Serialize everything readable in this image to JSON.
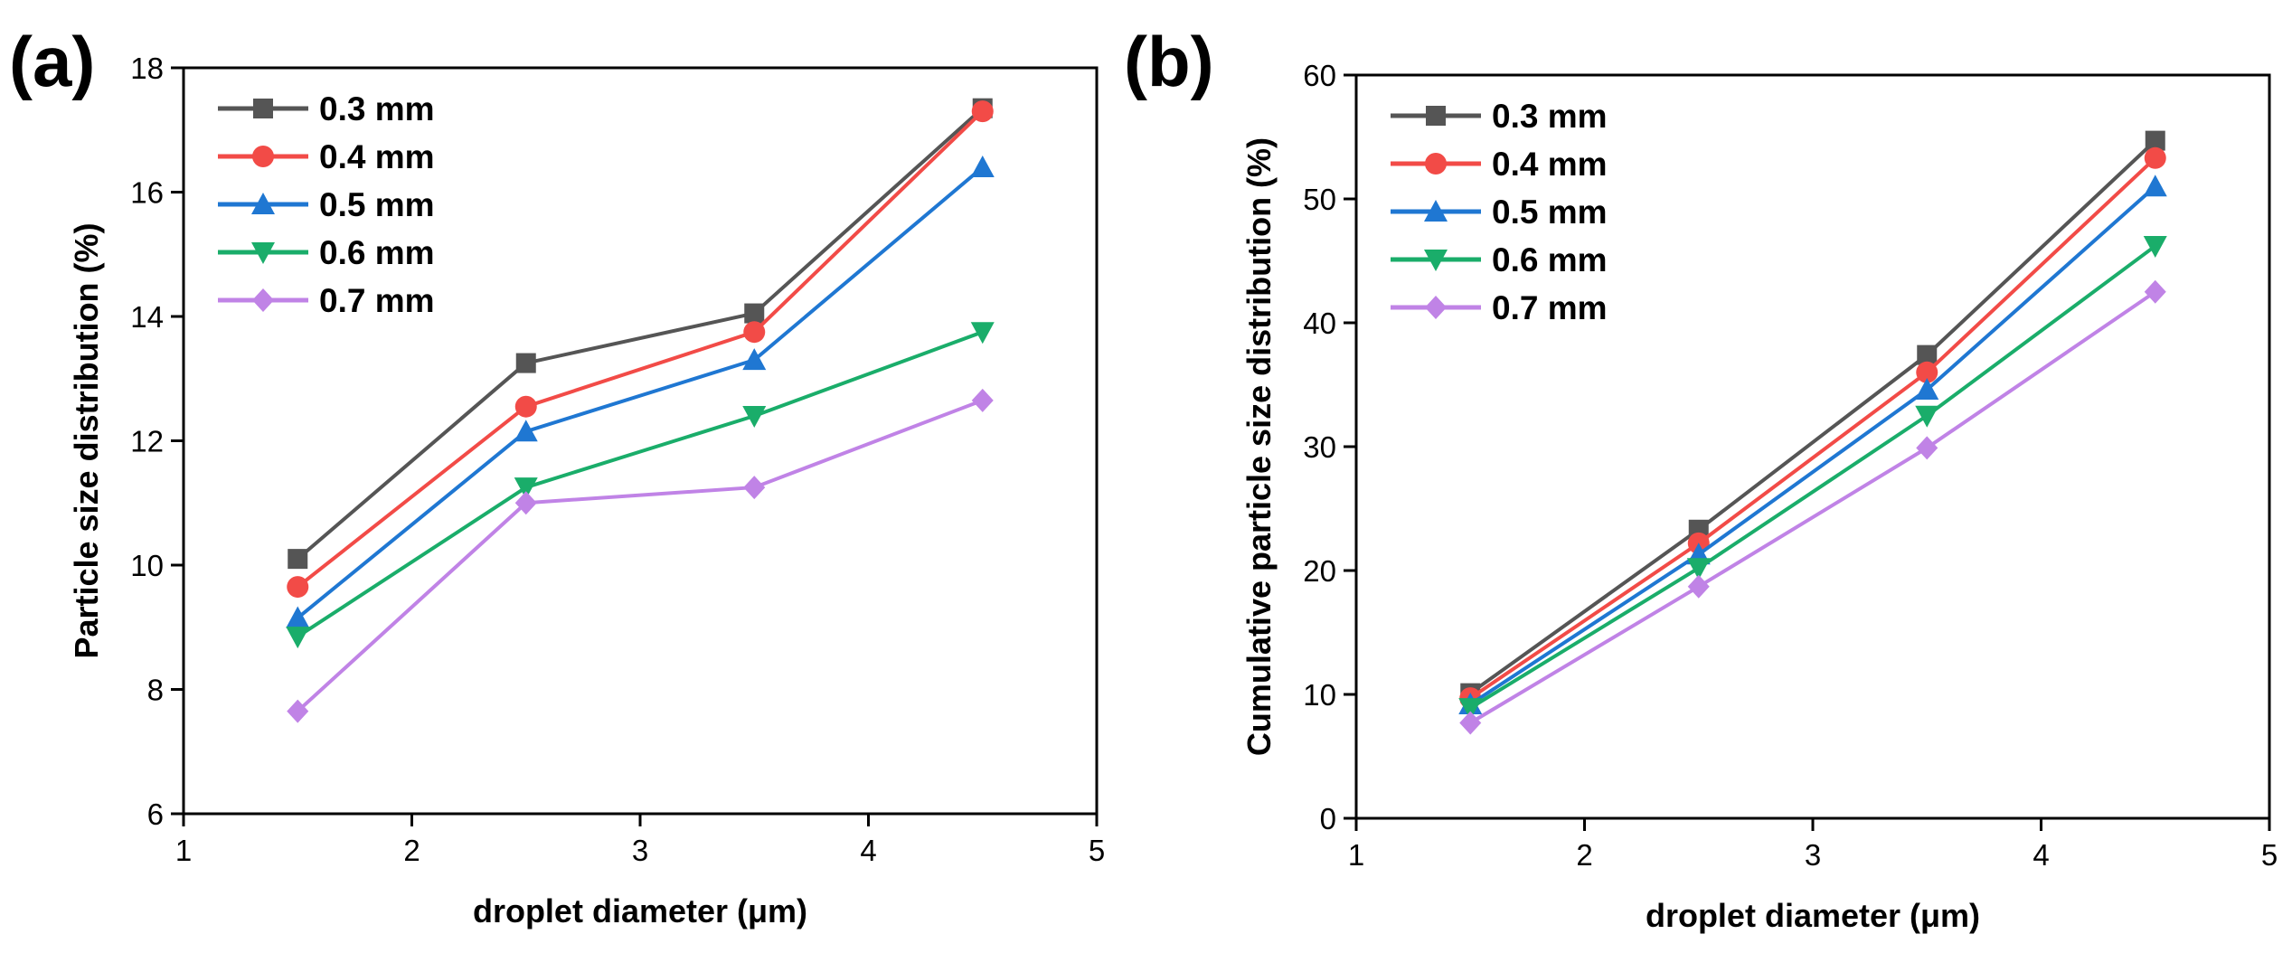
{
  "chart_data": [
    {
      "type": "line",
      "panel_label": "(a)",
      "title": "",
      "xlabel": "droplet diameter (μm)",
      "ylabel": "Particle size distribution (%)",
      "xlim": [
        1,
        5
      ],
      "ylim": [
        6,
        18
      ],
      "xticks": [
        1,
        2,
        3,
        4,
        5
      ],
      "yticks": [
        6,
        8,
        10,
        12,
        14,
        16,
        18
      ],
      "grid": false,
      "legend_position": "top-left",
      "x": [
        1.5,
        2.5,
        3.5,
        4.5
      ],
      "series": [
        {
          "name": "0.3 mm",
          "color": "#555555",
          "marker": "square",
          "values": [
            10.1,
            13.25,
            14.05,
            17.35
          ]
        },
        {
          "name": "0.4 mm",
          "color": "#f24b47",
          "marker": "circle",
          "values": [
            9.65,
            12.55,
            13.75,
            17.3
          ]
        },
        {
          "name": "0.5 mm",
          "color": "#1f77d2",
          "marker": "triangle-up",
          "values": [
            9.15,
            12.15,
            13.3,
            16.4
          ]
        },
        {
          "name": "0.6 mm",
          "color": "#1aad6a",
          "marker": "triangle-down",
          "values": [
            8.85,
            11.25,
            12.4,
            13.75
          ]
        },
        {
          "name": "0.7 mm",
          "color": "#c083e6",
          "marker": "diamond",
          "values": [
            7.65,
            11.0,
            11.25,
            12.65
          ]
        }
      ]
    },
    {
      "type": "line",
      "panel_label": "(b)",
      "title": "",
      "xlabel": "droplet diameter (μm)",
      "ylabel": "Cumulative particle size distribution (%)",
      "xlim": [
        1,
        5
      ],
      "ylim": [
        0,
        60
      ],
      "xticks": [
        1,
        2,
        3,
        4,
        5
      ],
      "yticks": [
        0,
        10,
        20,
        30,
        40,
        50,
        60
      ],
      "grid": false,
      "legend_position": "top-left",
      "x": [
        1.5,
        2.5,
        3.5,
        4.5
      ],
      "series": [
        {
          "name": "0.3 mm",
          "color": "#555555",
          "marker": "square",
          "values": [
            10.1,
            23.3,
            37.4,
            54.7
          ]
        },
        {
          "name": "0.4 mm",
          "color": "#f24b47",
          "marker": "circle",
          "values": [
            9.7,
            22.2,
            36.0,
            53.3
          ]
        },
        {
          "name": "0.5 mm",
          "color": "#1f77d2",
          "marker": "triangle-up",
          "values": [
            9.2,
            21.3,
            34.6,
            51.0
          ]
        },
        {
          "name": "0.6 mm",
          "color": "#1aad6a",
          "marker": "triangle-down",
          "values": [
            8.9,
            20.2,
            32.5,
            46.2
          ]
        },
        {
          "name": "0.7 mm",
          "color": "#c083e6",
          "marker": "diamond",
          "values": [
            7.7,
            18.7,
            29.9,
            42.5
          ]
        }
      ]
    }
  ]
}
